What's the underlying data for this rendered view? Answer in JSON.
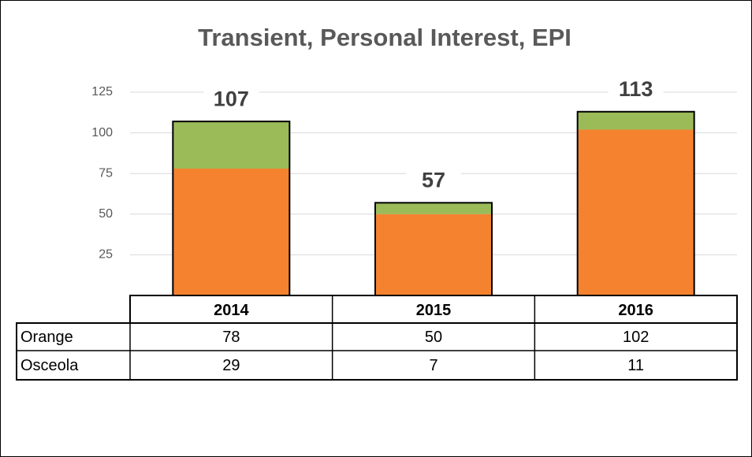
{
  "chart_data": {
    "type": "stacked_bar",
    "title": "Transient, Personal Interest, EPI",
    "categories": [
      "2014",
      "2015",
      "2016"
    ],
    "series": [
      {
        "name": "Orange",
        "color": "#f5822e",
        "values": [
          78,
          50,
          102
        ]
      },
      {
        "name": "Osceola",
        "color": "#9bbb59",
        "values": [
          29,
          7,
          11
        ]
      }
    ],
    "totals": [
      107,
      57,
      113
    ],
    "ylim": [
      0,
      125
    ],
    "yticks": [
      25,
      50,
      75,
      100,
      125
    ],
    "grid": true
  }
}
